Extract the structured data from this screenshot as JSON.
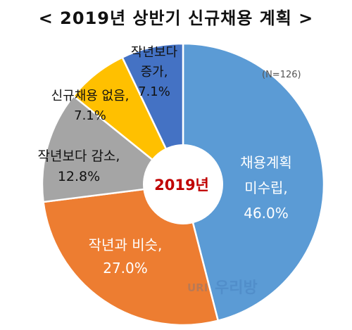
{
  "chart_data": {
    "type": "pie",
    "variant": "donut",
    "title": "< 2019년 상반기 신규채용 계획 >",
    "center_label": "2019년",
    "note": "(N=126)",
    "slices": [
      {
        "label_lines": [
          "채용계획",
          "미수립,"
        ],
        "value": 46.0,
        "value_text": "46.0%",
        "color": "#5b9bd5",
        "label_color": "#ffffff"
      },
      {
        "label_lines": [
          "작년과 비슷,"
        ],
        "value": 27.0,
        "value_text": "27.0%",
        "color": "#ed7d31",
        "label_color": "#ffffff"
      },
      {
        "label_lines": [
          "작년보다 감소,"
        ],
        "value": 12.8,
        "value_text": "12.8%",
        "color": "#a5a5a5",
        "label_color": "#111111"
      },
      {
        "label_lines": [
          "신규채용 없음,"
        ],
        "value": 7.1,
        "value_text": "7.1%",
        "color": "#ffc000",
        "label_color": "#111111"
      },
      {
        "label_lines": [
          "작년보다",
          "증가,"
        ],
        "value": 7.1,
        "value_text": "7.1%",
        "color": "#4472c4",
        "label_color": "#111111"
      }
    ],
    "start_angle_deg": 0,
    "direction": "clockwise",
    "center_label_color": "#c00000",
    "legend": "none"
  },
  "watermark": {
    "logo_letters": "URI",
    "text": "우리방"
  }
}
